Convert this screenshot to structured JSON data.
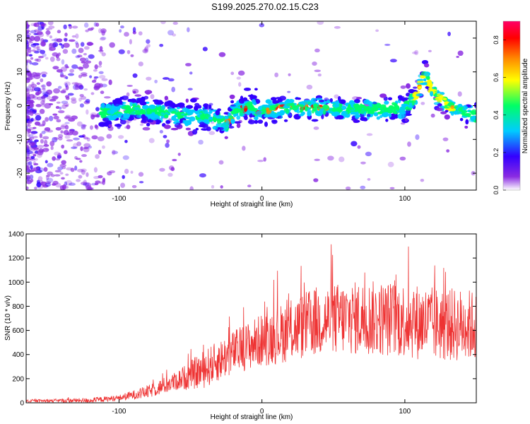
{
  "title": "S199.2025.270.02.15.C23",
  "chart_data": [
    {
      "type": "heatmap",
      "xlabel": "Height of straight line (km)",
      "ylabel": "Frequency (Hz)",
      "xlim": [
        -165,
        150
      ],
      "ylim": [
        -25,
        25
      ],
      "xticks": [
        -100,
        0,
        100
      ],
      "yticks": [
        -20,
        -10,
        0,
        10,
        20
      ],
      "ridge": {
        "x": [
          -110,
          -90,
          -70,
          -50,
          -40,
          -30,
          -25,
          -20,
          -10,
          0,
          10,
          20,
          40,
          60,
          80,
          100,
          108,
          114,
          120,
          130,
          140,
          150
        ],
        "freq": [
          -2,
          -1,
          -2,
          -3,
          -3,
          -4,
          -6,
          -2,
          -0.5,
          -1.5,
          -1,
          -0.5,
          -0.5,
          -1,
          -1,
          -0.5,
          3,
          9,
          4,
          0,
          -2,
          -3
        ]
      },
      "colorbar": {
        "label": "Normalized spectral amplitude",
        "range": [
          0,
          0.9
        ],
        "ticks": [
          0.0,
          0.2,
          0.4,
          0.6,
          0.8
        ],
        "tick_labels": [
          "0.0",
          "0.2",
          "0.4",
          "0.6",
          "0.8"
        ],
        "colors": [
          "#ffffff",
          "#8a2be2",
          "#3300ff",
          "#00ccff",
          "#00ff66",
          "#ffff00",
          "#ff8800",
          "#ff0000",
          "#ff0066"
        ]
      }
    },
    {
      "type": "line",
      "xlabel": "Height of straight line (km)",
      "ylabel": "SNR (10 * v/v)",
      "xlim": [
        -165,
        150
      ],
      "ylim": [
        0,
        1400
      ],
      "xticks": [
        -100,
        0,
        100
      ],
      "yticks": [
        0,
        200,
        400,
        600,
        800,
        1000,
        1200,
        1400
      ],
      "line_color": "#ee3333",
      "trend": {
        "x": [
          -165,
          -120,
          -100,
          -80,
          -60,
          -40,
          -20,
          0,
          20,
          40,
          60,
          80,
          100,
          120,
          150
        ],
        "y": [
          15,
          20,
          40,
          90,
          180,
          280,
          420,
          520,
          600,
          680,
          700,
          700,
          690,
          650,
          640
        ]
      },
      "noise_amp": {
        "x": [
          -165,
          -100,
          -60,
          -40,
          -20,
          0,
          40,
          100,
          150
        ],
        "y": [
          10,
          25,
          80,
          160,
          180,
          220,
          300,
          320,
          300
        ]
      }
    }
  ]
}
